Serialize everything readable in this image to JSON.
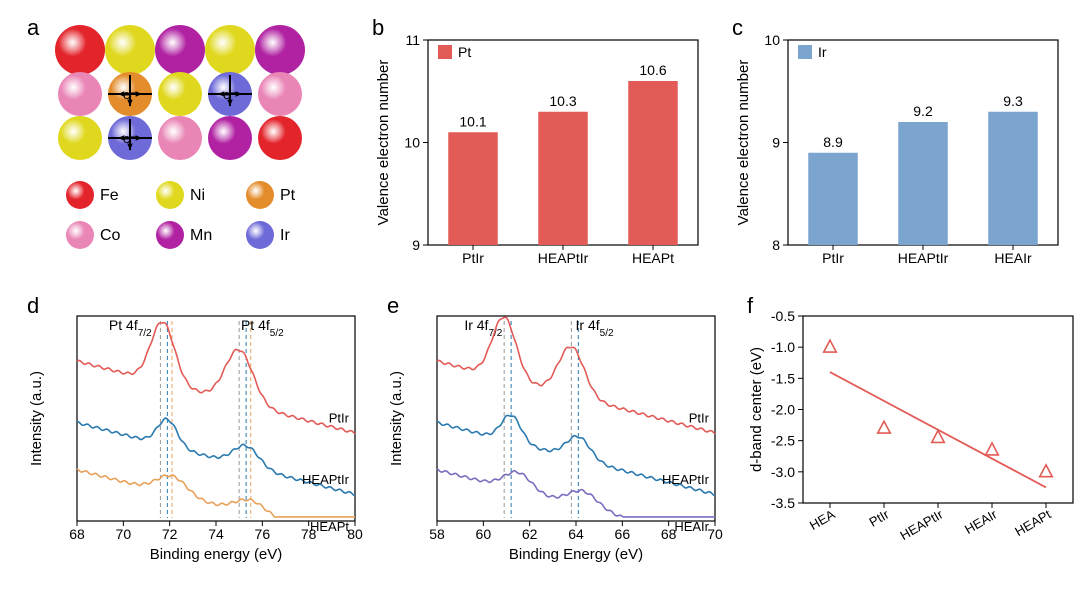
{
  "panel_a": {
    "label": "a",
    "atoms_layout": [
      [
        {
          "c": "#e3242b"
        },
        {
          "c": "#e0d81e"
        },
        {
          "c": "#b122a2"
        },
        {
          "c": "#e0d81e"
        },
        {
          "c": "#b122a2"
        }
      ],
      [
        {
          "c": "#e986b6"
        },
        {
          "c": "#e38c2c",
          "e": true
        },
        {
          "c": "#e0d81e"
        },
        {
          "c": "#6e6ad8",
          "e": true
        },
        {
          "c": "#e986b6"
        }
      ],
      [
        {
          "c": "#e0d81e"
        },
        {
          "c": "#6e6ad8",
          "e": true
        },
        {
          "c": "#e986b6"
        },
        {
          "c": "#b122a2"
        },
        {
          "c": "#e3242b"
        }
      ]
    ],
    "legend": [
      {
        "name": "Fe",
        "color": "#e3242b"
      },
      {
        "name": "Ni",
        "color": "#e0d81e"
      },
      {
        "name": "Pt",
        "color": "#e38c2c"
      },
      {
        "name": "Co",
        "color": "#e986b6"
      },
      {
        "name": "Mn",
        "color": "#b122a2"
      },
      {
        "name": "Ir",
        "color": "#6e6ad8"
      }
    ],
    "e_label": "e⁻"
  },
  "panel_b": {
    "label": "b",
    "ylabel": "Valence electron number",
    "ylim": [
      9,
      11
    ],
    "yticks": [
      9,
      10,
      11
    ],
    "categories": [
      "PtIr",
      "HEAPtIr",
      "HEAPt"
    ],
    "values": [
      10.1,
      10.3,
      10.6
    ],
    "bar_color": "#e25b56",
    "legend_label": "Pt",
    "label_fontsize": 15,
    "tick_fontsize": 14,
    "value_fontsize": 14
  },
  "panel_c": {
    "label": "c",
    "ylabel": "Valence electron number",
    "ylim": [
      8,
      10
    ],
    "yticks": [
      8,
      9,
      10
    ],
    "categories": [
      "PtIr",
      "HEAPtIr",
      "HEAIr"
    ],
    "values": [
      8.9,
      9.2,
      9.3
    ],
    "bar_color": "#7ba4cf",
    "legend_label": "Ir",
    "label_fontsize": 15,
    "tick_fontsize": 14,
    "value_fontsize": 14
  },
  "panel_d": {
    "label": "d",
    "xlabel": "Binding energy (eV)",
    "ylabel": "Intensity (a.u.)",
    "xlim": [
      68,
      80
    ],
    "xticks": [
      68,
      70,
      72,
      74,
      76,
      78,
      80
    ],
    "peak_labels": [
      {
        "text": "Pt 4f",
        "sub": "7/2",
        "x": 70.3
      },
      {
        "text": "Pt 4f",
        "sub": "5/2",
        "x": 76.0
      }
    ],
    "dashed_lines": [
      {
        "x": 71.6,
        "color": "#999999"
      },
      {
        "x": 71.9,
        "color": "#2a7ab0"
      },
      {
        "x": 75.0,
        "color": "#999999"
      },
      {
        "x": 75.3,
        "color": "#2a7ab0"
      },
      {
        "x": 72.1,
        "color": "#e9a15a"
      },
      {
        "x": 75.5,
        "color": "#e9a15a"
      }
    ],
    "traces": [
      {
        "name": "PtIr",
        "color": "#e25b56",
        "baseline": 0.78,
        "peaks": [
          {
            "x": 71.7,
            "h": 0.3,
            "w": 1.2
          },
          {
            "x": 75.0,
            "h": 0.26,
            "w": 1.4
          }
        ]
      },
      {
        "name": "HEAPtIr",
        "color": "#2a7ab0",
        "baseline": 0.48,
        "peaks": [
          {
            "x": 71.9,
            "h": 0.13,
            "w": 1.0
          },
          {
            "x": 75.3,
            "h": 0.1,
            "w": 1.3
          }
        ]
      },
      {
        "name": "HEAPt",
        "color": "#e9a15a",
        "baseline": 0.25,
        "peaks": [
          {
            "x": 72.1,
            "h": 0.09,
            "w": 1.5
          },
          {
            "x": 75.5,
            "h": 0.07,
            "w": 1.6
          }
        ]
      }
    ]
  },
  "panel_e": {
    "label": "e",
    "xlabel": "Binding Energy (eV)",
    "ylabel": "Intensity (a.u.)",
    "xlim": [
      58,
      70
    ],
    "xticks": [
      58,
      60,
      62,
      64,
      66,
      68,
      70
    ],
    "peak_labels": [
      {
        "text": "Ir 4f",
        "sub": "7/2",
        "x": 60.0
      },
      {
        "text": "Ir 4f",
        "sub": "5/2",
        "x": 64.8
      }
    ],
    "dashed_lines": [
      {
        "x": 60.9,
        "color": "#999999"
      },
      {
        "x": 61.2,
        "color": "#2a7ab0"
      },
      {
        "x": 63.8,
        "color": "#999999"
      },
      {
        "x": 64.1,
        "color": "#2a7ab0"
      }
    ],
    "traces": [
      {
        "name": "PtIr",
        "color": "#e25b56",
        "baseline": 0.78,
        "peaks": [
          {
            "x": 60.9,
            "h": 0.3,
            "w": 1.2
          },
          {
            "x": 63.8,
            "h": 0.24,
            "w": 1.3
          }
        ]
      },
      {
        "name": "HEAPtIr",
        "color": "#2a7ab0",
        "baseline": 0.48,
        "peaks": [
          {
            "x": 61.2,
            "h": 0.13,
            "w": 1.0
          },
          {
            "x": 64.1,
            "h": 0.11,
            "w": 1.2
          }
        ]
      },
      {
        "name": "HEAIr",
        "color": "#7d6bc0",
        "baseline": 0.25,
        "peaks": [
          {
            "x": 61.5,
            "h": 0.09,
            "w": 1.4
          },
          {
            "x": 64.3,
            "h": 0.08,
            "w": 1.5
          }
        ]
      }
    ]
  },
  "panel_f": {
    "label": "f",
    "ylabel": "d-band center (eV)",
    "ylim": [
      -3.5,
      -0.5
    ],
    "yticks": [
      -3.5,
      -3.0,
      -2.5,
      -2.0,
      -1.5,
      -1.0,
      -0.5
    ],
    "categories": [
      "HEA",
      "PtIr",
      "HEAPtIr",
      "HEAIr",
      "HEAPt"
    ],
    "points": [
      -1.0,
      -2.3,
      -2.45,
      -2.65,
      -3.0
    ],
    "fit_line": {
      "y0": -1.4,
      "y1": -3.25
    },
    "marker_color": "#e25b56",
    "line_color": "#e25b56"
  }
}
